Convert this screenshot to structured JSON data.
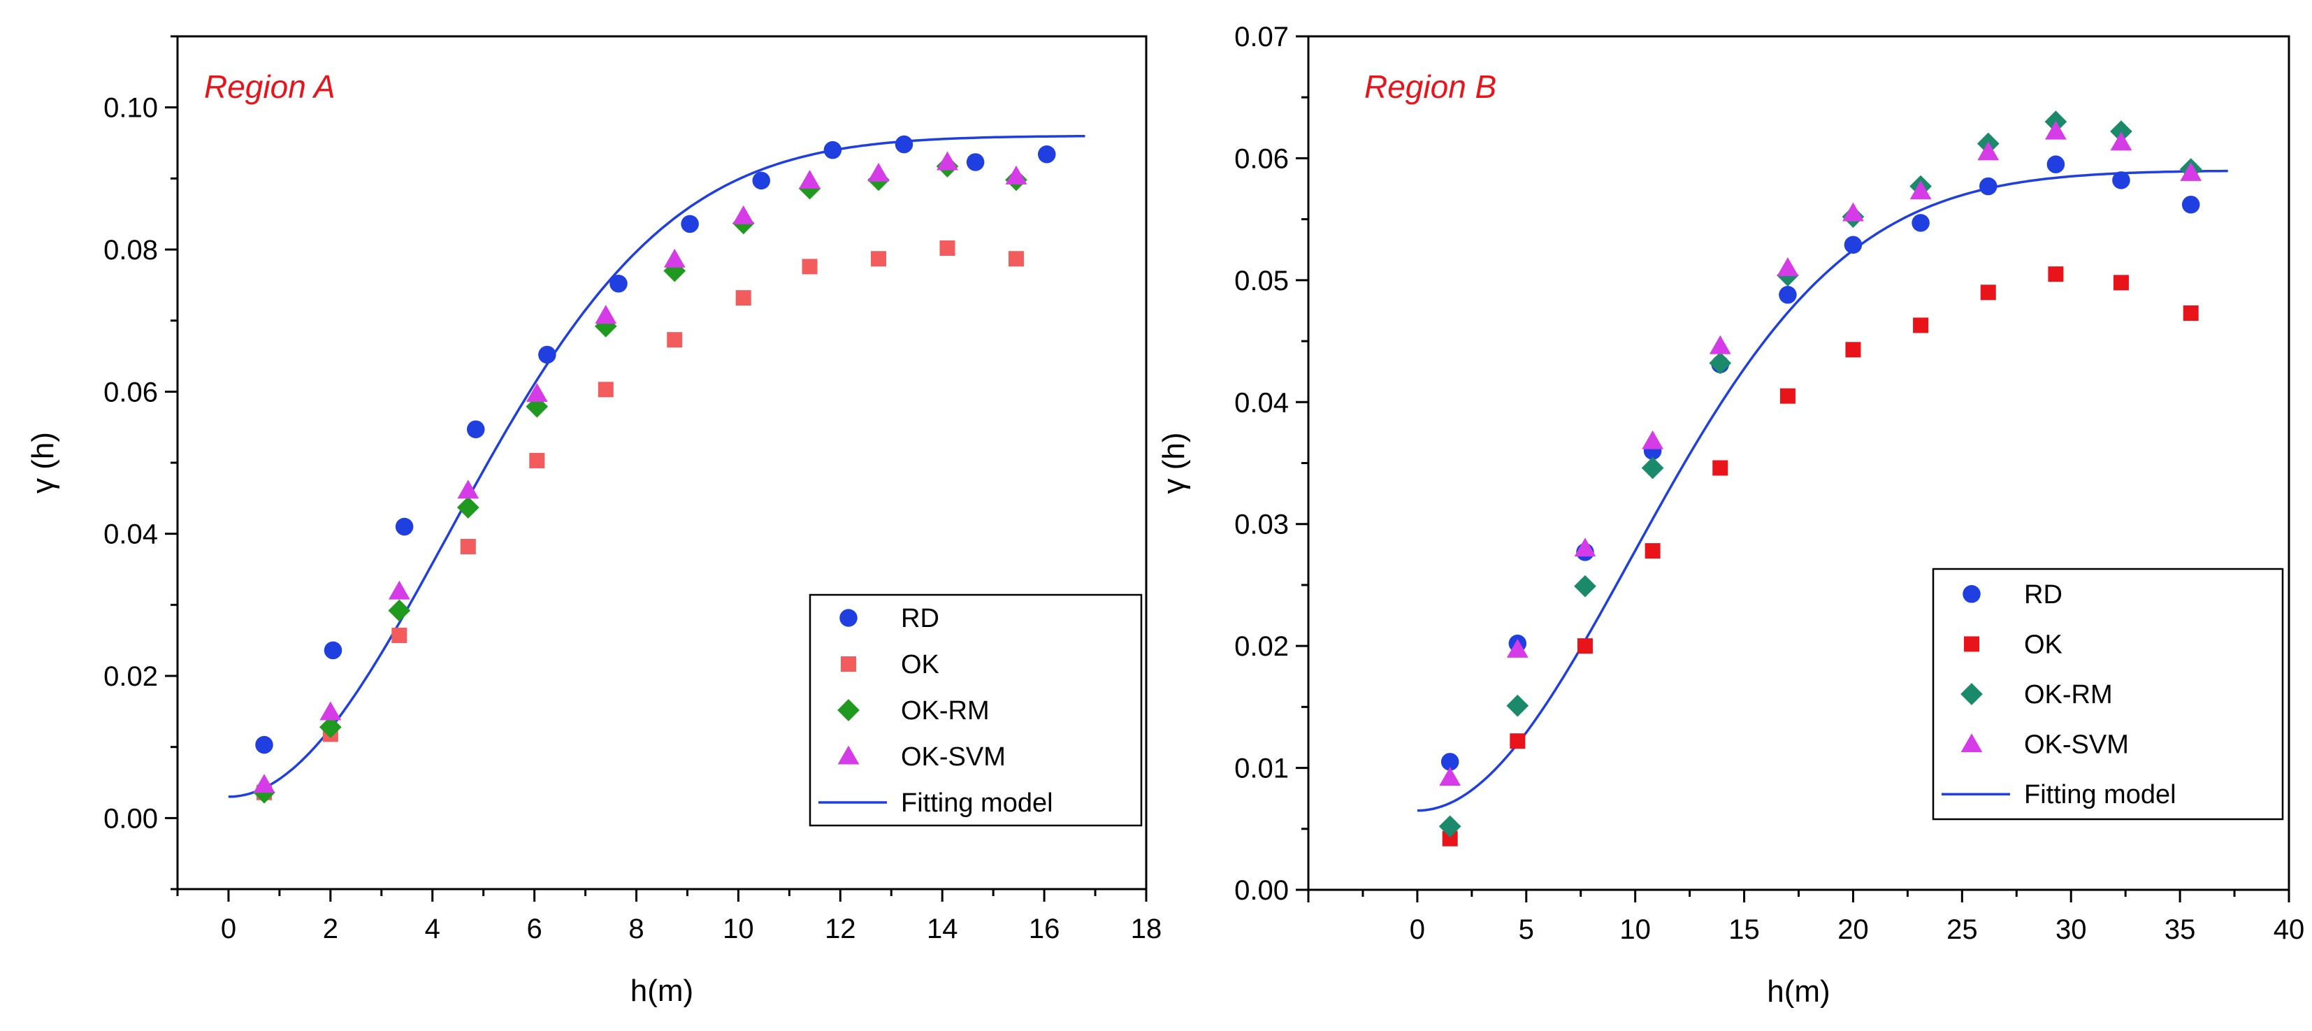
{
  "chart_data": [
    {
      "type": "scatter",
      "annotation": "Region A",
      "xlabel": "h(m)",
      "ylabel": "γ (h)",
      "xlim": [
        -1,
        18
      ],
      "ylim": [
        -0.01,
        0.11
      ],
      "xticks": [
        0,
        2,
        4,
        6,
        8,
        10,
        12,
        14,
        16,
        18
      ],
      "yticks": [
        0.0,
        0.02,
        0.04,
        0.06,
        0.08,
        0.1
      ],
      "ytick_labels": [
        "0.00",
        "0.02",
        "0.04",
        "0.06",
        "0.08",
        "0.10"
      ],
      "legend_position": "bottom-right",
      "series": [
        {
          "name": "RD",
          "marker": "circle",
          "color": "#1f3fe0",
          "x": [
            0.7,
            2.05,
            3.45,
            4.85,
            6.25,
            7.65,
            9.05,
            10.45,
            11.85,
            13.25,
            14.65,
            16.05
          ],
          "y": [
            0.0103,
            0.0236,
            0.041,
            0.0547,
            0.0652,
            0.0752,
            0.0836,
            0.0897,
            0.094,
            0.0948,
            0.0923,
            0.0934
          ]
        },
        {
          "name": "OK",
          "marker": "square",
          "color": "#f25c5c",
          "x": [
            0.7,
            2.0,
            3.35,
            4.7,
            6.05,
            7.4,
            8.75,
            10.1,
            11.4,
            12.75,
            14.1,
            15.45
          ],
          "y": [
            0.0036,
            0.0118,
            0.0257,
            0.0382,
            0.0503,
            0.0603,
            0.0673,
            0.0732,
            0.0776,
            0.0787,
            0.0802,
            0.0787
          ]
        },
        {
          "name": "OK-RM",
          "marker": "diamond",
          "color": "#1f9a1f",
          "x": [
            0.7,
            2.0,
            3.35,
            4.7,
            6.05,
            7.4,
            8.75,
            10.1,
            11.4,
            12.75,
            14.1,
            15.45
          ],
          "y": [
            0.0036,
            0.0128,
            0.0292,
            0.0437,
            0.0579,
            0.0692,
            0.077,
            0.0837,
            0.0886,
            0.0898,
            0.0917,
            0.0898
          ]
        },
        {
          "name": "OK-SVM",
          "marker": "triangle",
          "color": "#d63be8",
          "x": [
            0.7,
            2.0,
            3.35,
            4.7,
            6.05,
            7.4,
            8.75,
            10.1,
            11.4,
            12.75,
            14.1,
            15.45
          ],
          "y": [
            0.0047,
            0.0149,
            0.0319,
            0.0461,
            0.0597,
            0.0707,
            0.0786,
            0.0847,
            0.0897,
            0.0907,
            0.0923,
            0.0903
          ]
        },
        {
          "name": "Fitting model",
          "marker": "line",
          "color": "#1f3fe0",
          "model": {
            "nugget": 0.003,
            "sill": 0.096,
            "range": 10.5,
            "xmax": 16.8
          }
        }
      ]
    },
    {
      "type": "scatter",
      "annotation": "Region B",
      "xlabel": "h(m)",
      "ylabel": "γ (h)",
      "xlim": [
        -5,
        40
      ],
      "ylim": [
        0,
        0.07
      ],
      "xticks": [
        0,
        5,
        10,
        15,
        20,
        25,
        30,
        35,
        40
      ],
      "yticks": [
        0.0,
        0.01,
        0.02,
        0.03,
        0.04,
        0.05,
        0.06,
        0.07
      ],
      "ytick_labels": [
        "0.00",
        "0.01",
        "0.02",
        "0.03",
        "0.04",
        "0.05",
        "0.06",
        "0.07"
      ],
      "legend_position": "bottom-right",
      "series": [
        {
          "name": "RD",
          "marker": "circle",
          "color": "#1f3fe0",
          "x": [
            1.5,
            4.6,
            7.7,
            10.8,
            13.9,
            17.0,
            20.0,
            23.1,
            26.2,
            29.3,
            32.3,
            35.5
          ],
          "y": [
            0.0105,
            0.0202,
            0.0277,
            0.036,
            0.0431,
            0.0488,
            0.0529,
            0.0547,
            0.0577,
            0.0595,
            0.0582,
            0.0562
          ]
        },
        {
          "name": "OK",
          "marker": "square",
          "color": "#e8141a",
          "x": [
            1.5,
            4.6,
            7.7,
            10.8,
            13.9,
            17.0,
            20.0,
            23.1,
            26.2,
            29.3,
            32.3,
            35.5
          ],
          "y": [
            0.0042,
            0.0122,
            0.02,
            0.0278,
            0.0346,
            0.0405,
            0.0443,
            0.0463,
            0.049,
            0.0505,
            0.0498,
            0.0473
          ]
        },
        {
          "name": "OK-RM",
          "marker": "diamond",
          "color": "#1a8a6a",
          "x": [
            1.5,
            4.6,
            7.7,
            10.8,
            13.9,
            17.0,
            20.0,
            23.1,
            26.2,
            29.3,
            32.3,
            35.5
          ],
          "y": [
            0.0052,
            0.0151,
            0.0249,
            0.0346,
            0.0432,
            0.0504,
            0.0552,
            0.0577,
            0.0612,
            0.063,
            0.0622,
            0.0591
          ]
        },
        {
          "name": "OK-SVM",
          "marker": "triangle",
          "color": "#d63be8",
          "x": [
            1.5,
            4.6,
            7.7,
            10.8,
            13.9,
            17.0,
            20.0,
            23.1,
            26.2,
            29.3,
            32.3,
            35.5
          ],
          "y": [
            0.0092,
            0.0197,
            0.028,
            0.0368,
            0.0446,
            0.051,
            0.0555,
            0.0573,
            0.0605,
            0.0622,
            0.0613,
            0.0588
          ]
        },
        {
          "name": "Fitting model",
          "marker": "line",
          "color": "#1f3fe0",
          "model": {
            "nugget": 0.0065,
            "sill": 0.059,
            "range": 24,
            "xmax": 37.2
          }
        }
      ]
    }
  ]
}
